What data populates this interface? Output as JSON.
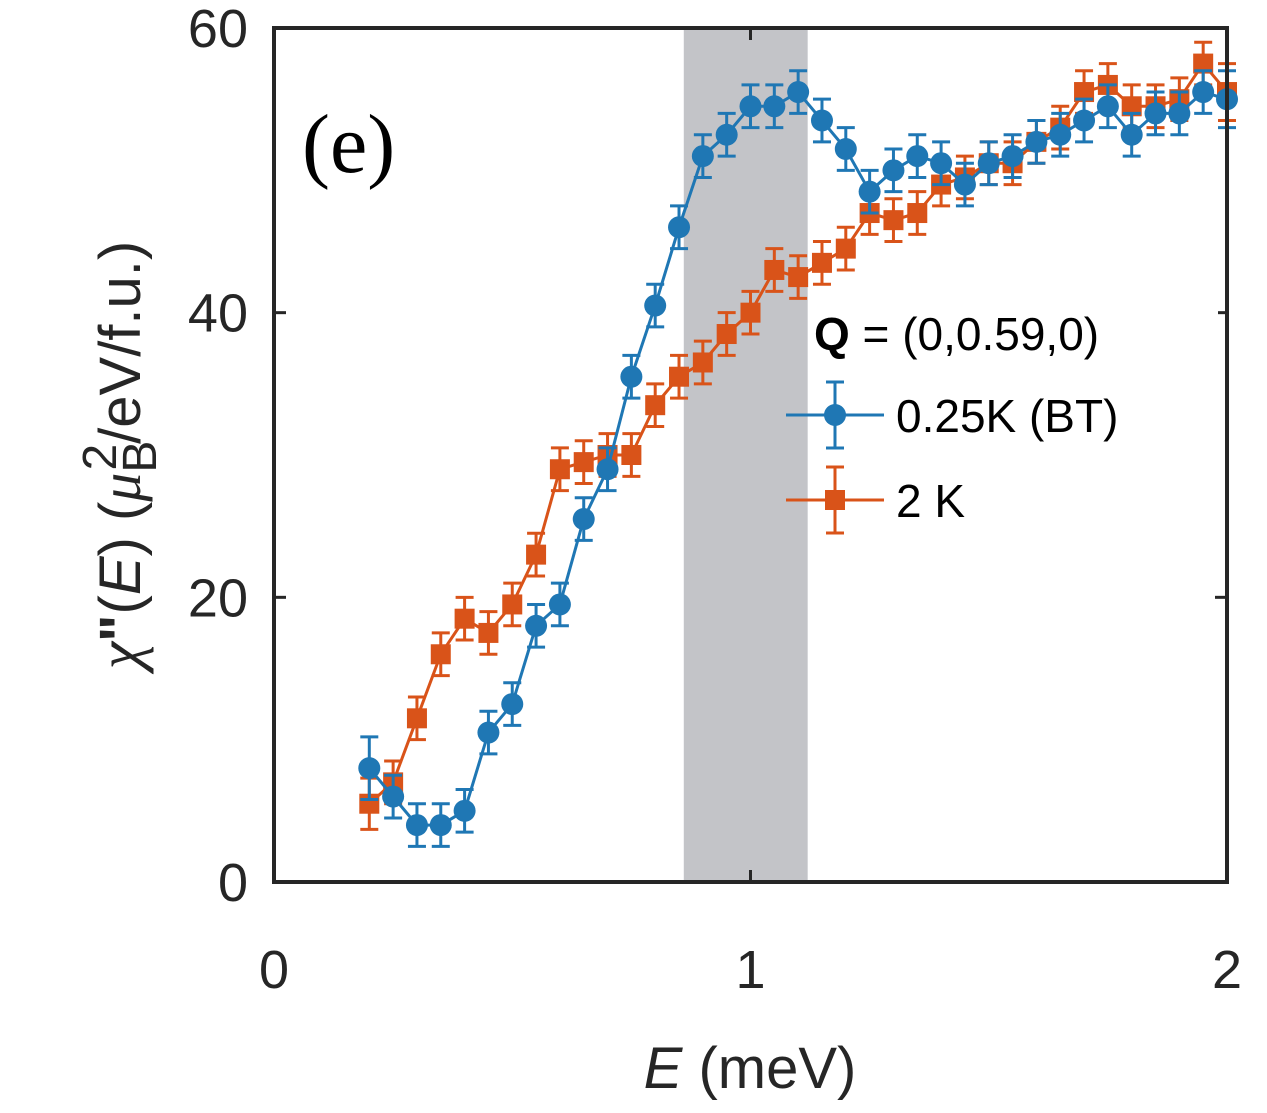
{
  "chart_data": {
    "type": "line",
    "panel_label": "(e)",
    "xlabel": {
      "var": "E",
      "unit": " (meV)"
    },
    "ylabel": {
      "chi": "χ",
      "prime": "\"",
      "open": "(",
      "var": "E",
      "close": ") (",
      "mu": "μ",
      "sub": "B",
      "sup": "2",
      "rest": "/eV/f.u.)"
    },
    "xlim": [
      0,
      2
    ],
    "ylim": [
      0,
      60
    ],
    "xticks": [
      "0",
      "1",
      "2"
    ],
    "yticks": [
      "0",
      "20",
      "40",
      "60"
    ],
    "shaded_band": {
      "x_start": 0.86,
      "x_end": 1.12,
      "color": "#c3c4c8"
    },
    "legend": {
      "title_bold": "Q",
      "title_rest": " = (0,0.59,0)",
      "position": "right"
    },
    "series": [
      {
        "name": "0.25K (BT)",
        "color": "#1f77b4",
        "marker": "circle",
        "points": [
          [
            0.2,
            8.0,
            2.2
          ],
          [
            0.25,
            6.0,
            1.5
          ],
          [
            0.3,
            4.0,
            1.5
          ],
          [
            0.35,
            4.0,
            1.5
          ],
          [
            0.4,
            5.0,
            1.5
          ],
          [
            0.45,
            10.5,
            1.5
          ],
          [
            0.5,
            12.5,
            1.5
          ],
          [
            0.55,
            18.0,
            1.5
          ],
          [
            0.6,
            19.5,
            1.5
          ],
          [
            0.65,
            25.5,
            1.5
          ],
          [
            0.7,
            29.0,
            1.5
          ],
          [
            0.75,
            35.5,
            1.5
          ],
          [
            0.8,
            40.5,
            1.5
          ],
          [
            0.85,
            46.0,
            1.5
          ],
          [
            0.9,
            51.0,
            1.5
          ],
          [
            0.95,
            52.5,
            1.5
          ],
          [
            1.0,
            54.5,
            1.5
          ],
          [
            1.05,
            54.5,
            1.5
          ],
          [
            1.1,
            55.5,
            1.5
          ],
          [
            1.15,
            53.5,
            1.5
          ],
          [
            1.2,
            51.5,
            1.5
          ],
          [
            1.25,
            48.5,
            1.5
          ],
          [
            1.3,
            50.0,
            1.5
          ],
          [
            1.35,
            51.0,
            1.5
          ],
          [
            1.4,
            50.5,
            1.5
          ],
          [
            1.45,
            49.0,
            1.5
          ],
          [
            1.5,
            50.5,
            1.5
          ],
          [
            1.55,
            51.0,
            1.5
          ],
          [
            1.6,
            52.0,
            1.5
          ],
          [
            1.65,
            52.5,
            1.5
          ],
          [
            1.7,
            53.5,
            1.5
          ],
          [
            1.75,
            54.5,
            1.5
          ],
          [
            1.8,
            52.5,
            1.5
          ],
          [
            1.85,
            54.0,
            1.5
          ],
          [
            1.9,
            54.0,
            1.5
          ],
          [
            1.95,
            55.5,
            1.5
          ],
          [
            2.0,
            55.0,
            2.0
          ]
        ]
      },
      {
        "name": "2 K",
        "color": "#d95319",
        "marker": "square",
        "points": [
          [
            0.2,
            5.5,
            1.8
          ],
          [
            0.25,
            7.0,
            1.5
          ],
          [
            0.3,
            11.5,
            1.5
          ],
          [
            0.35,
            16.0,
            1.5
          ],
          [
            0.4,
            18.5,
            1.5
          ],
          [
            0.45,
            17.5,
            1.5
          ],
          [
            0.5,
            19.5,
            1.5
          ],
          [
            0.55,
            23.0,
            1.5
          ],
          [
            0.6,
            29.0,
            1.5
          ],
          [
            0.65,
            29.5,
            1.5
          ],
          [
            0.7,
            30.0,
            1.5
          ],
          [
            0.75,
            30.0,
            1.5
          ],
          [
            0.8,
            33.5,
            1.5
          ],
          [
            0.85,
            35.5,
            1.5
          ],
          [
            0.9,
            36.5,
            1.5
          ],
          [
            0.95,
            38.5,
            1.5
          ],
          [
            1.0,
            40.0,
            1.5
          ],
          [
            1.05,
            43.0,
            1.5
          ],
          [
            1.1,
            42.5,
            1.5
          ],
          [
            1.15,
            43.5,
            1.5
          ],
          [
            1.2,
            44.5,
            1.5
          ],
          [
            1.25,
            47.0,
            1.5
          ],
          [
            1.3,
            46.5,
            1.5
          ],
          [
            1.35,
            47.0,
            1.5
          ],
          [
            1.4,
            49.0,
            1.5
          ],
          [
            1.45,
            49.5,
            1.5
          ],
          [
            1.5,
            50.5,
            1.5
          ],
          [
            1.55,
            50.5,
            1.5
          ],
          [
            1.6,
            52.0,
            1.5
          ],
          [
            1.65,
            53.0,
            1.5
          ],
          [
            1.7,
            55.5,
            1.5
          ],
          [
            1.75,
            56.0,
            1.5
          ],
          [
            1.8,
            54.5,
            1.5
          ],
          [
            1.85,
            54.5,
            1.5
          ],
          [
            1.9,
            55.0,
            1.5
          ],
          [
            1.95,
            57.5,
            1.5
          ],
          [
            2.0,
            55.5,
            2.0
          ]
        ]
      }
    ]
  }
}
